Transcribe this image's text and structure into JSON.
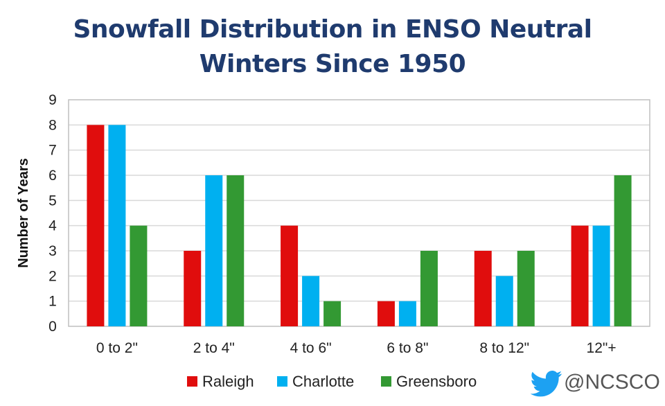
{
  "chart_data": {
    "type": "bar",
    "title": "Snowfall Distribution in ENSO Neutral Winters Since 1950",
    "title_lines": [
      "Snowfall Distribution in ENSO Neutral",
      "Winters Since 1950"
    ],
    "xlabel": "",
    "ylabel": "Number of Years",
    "ylim": [
      0,
      9
    ],
    "yticks": [
      0,
      1,
      2,
      3,
      4,
      5,
      6,
      7,
      8,
      9
    ],
    "grid": true,
    "legend_position": "bottom",
    "categories": [
      "0 to 2\"",
      "2 to 4\"",
      "4 to 6\"",
      "6 to 8\"",
      "8 to 12\"",
      "12\"+"
    ],
    "series": [
      {
        "name": "Raleigh",
        "color": "#e00d0d",
        "values": [
          8,
          3,
          4,
          1,
          3,
          4
        ]
      },
      {
        "name": "Charlotte",
        "color": "#00b0f0",
        "values": [
          8,
          6,
          2,
          1,
          2,
          4
        ]
      },
      {
        "name": "Greensboro",
        "color": "#339933",
        "values": [
          4,
          6,
          1,
          3,
          3,
          6
        ]
      }
    ]
  },
  "branding": {
    "twitter_handle": "@NCSCO",
    "icon": "twitter-bird-icon",
    "icon_color": "#1da1f2"
  }
}
